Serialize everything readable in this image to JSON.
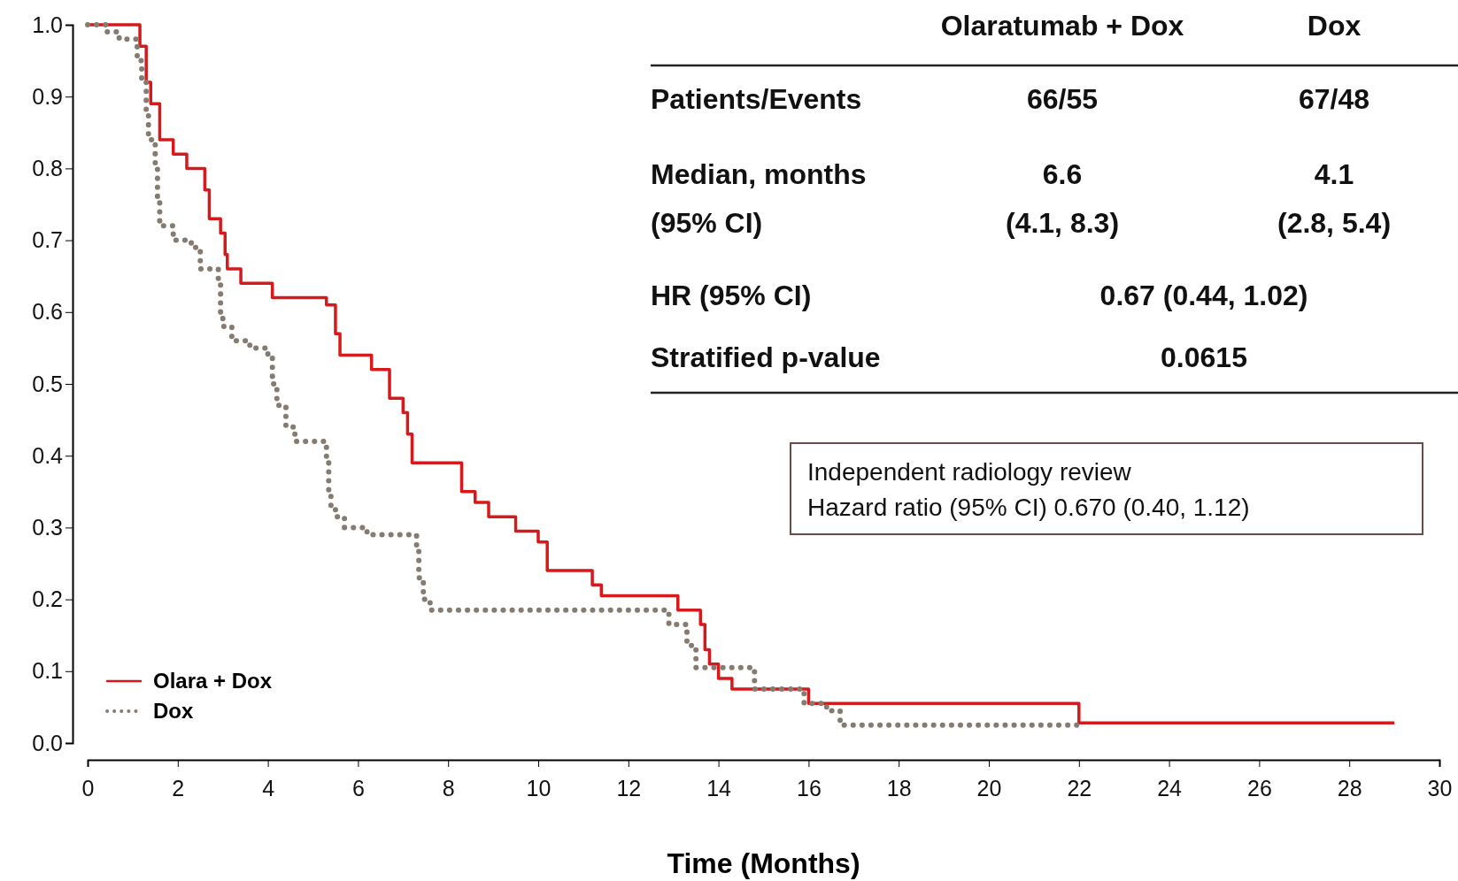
{
  "chart_data": {
    "type": "step",
    "xlabel": "Time (Months)",
    "xlim": [
      0,
      30
    ],
    "xticks": [
      0,
      2,
      4,
      6,
      8,
      10,
      12,
      14,
      16,
      18,
      20,
      22,
      24,
      26,
      28,
      30
    ],
    "ylim": [
      0,
      1
    ],
    "yticks": [
      {
        "value": 0,
        "label": "0.0"
      },
      0.1,
      0.2,
      0.3,
      0.4,
      0.5,
      0.6,
      0.7,
      0.8,
      0.9,
      {
        "value": 1,
        "label": "1.0"
      }
    ],
    "legend": "bottom left",
    "grid": false,
    "series": [
      {
        "name": "Olara + Dox",
        "color": "#d7191c",
        "line_style": "solid",
        "x": [
          0,
          1.16,
          1.3,
          1.4,
          1.6,
          1.9,
          2.2,
          2.6,
          2.7,
          2.95,
          3.05,
          3.1,
          3.4,
          4.1,
          5.3,
          5.5,
          5.6,
          6.3,
          6.7,
          7.0,
          7.1,
          7.2,
          8.3,
          8.6,
          8.9,
          9.5,
          10.0,
          10.2,
          11.2,
          11.4,
          13.1,
          13.6,
          13.7,
          13.8,
          14.0,
          14.3,
          16.0,
          22.0,
          29.0
        ],
        "values": [
          1.0,
          0.97,
          0.92,
          0.89,
          0.84,
          0.82,
          0.8,
          0.77,
          0.73,
          0.71,
          0.68,
          0.66,
          0.64,
          0.62,
          0.61,
          0.57,
          0.54,
          0.52,
          0.48,
          0.46,
          0.43,
          0.39,
          0.35,
          0.335,
          0.315,
          0.295,
          0.28,
          0.24,
          0.22,
          0.205,
          0.185,
          0.165,
          0.13,
          0.11,
          0.09,
          0.075,
          0.055,
          0.028,
          0.028
        ]
      },
      {
        "name": "Dox",
        "color": "#857b70",
        "line_style": "dotted",
        "x": [
          0,
          0.4,
          0.7,
          1.1,
          1.2,
          1.3,
          1.35,
          1.5,
          1.55,
          1.6,
          1.9,
          2.3,
          2.5,
          2.9,
          2.95,
          3.0,
          3.2,
          3.6,
          4.0,
          4.1,
          4.2,
          4.4,
          4.6,
          5.3,
          5.35,
          5.4,
          5.5,
          5.7,
          6.2,
          7.3,
          7.35,
          7.45,
          7.6,
          12.9,
          13.3,
          13.4,
          13.5,
          14.8,
          15.9,
          16.4,
          16.7,
          22.0
        ],
        "values": [
          1.0,
          0.99,
          0.98,
          0.95,
          0.92,
          0.88,
          0.84,
          0.8,
          0.76,
          0.72,
          0.7,
          0.69,
          0.66,
          0.64,
          0.6,
          0.58,
          0.56,
          0.55,
          0.54,
          0.5,
          0.47,
          0.44,
          0.42,
          0.39,
          0.35,
          0.33,
          0.315,
          0.3,
          0.29,
          0.27,
          0.23,
          0.2,
          0.185,
          0.165,
          0.14,
          0.13,
          0.105,
          0.075,
          0.055,
          0.045,
          0.025,
          0.025
        ]
      }
    ],
    "annotations": [
      "Olaratumab + Dox",
      "Dox",
      "Patients/Events",
      "66/55",
      "67/48",
      "Median, months",
      "6.6",
      "4.1",
      "(95% CI)",
      "(4.1, 8.3)",
      "(2.8, 5.4)",
      "HR (95% CI)",
      "0.67 (0.44, 1.02)",
      "Stratified p-value",
      "0.0615",
      "Independent radiology review",
      "Hazard ratio (95% CI) 0.670 (0.40, 1.12)"
    ]
  }
}
